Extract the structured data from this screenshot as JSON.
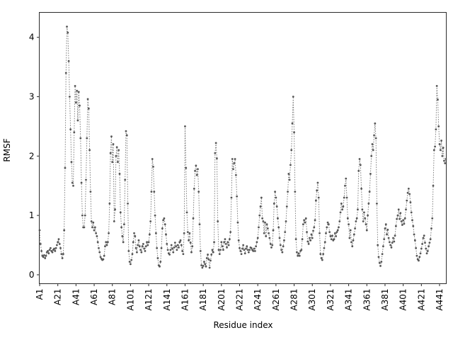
{
  "figure": {
    "xlabel": "Residue index",
    "ylabel": "RMSF"
  },
  "chart_data": {
    "type": "line",
    "title": "",
    "xlabel": "Residue index",
    "ylabel": "RMSF",
    "line_style": "dotted",
    "marker": "point",
    "marker_color": "#555555",
    "line_color": "#808080",
    "grid": false,
    "legend": null,
    "x_tick_labels": [
      "A1",
      "A21",
      "A41",
      "A61",
      "A81",
      "A101",
      "A121",
      "A141",
      "A161",
      "A181",
      "A201",
      "A221",
      "A241",
      "A261",
      "A281",
      "A301",
      "A321",
      "A341",
      "A361",
      "A381",
      "A401",
      "A421",
      "A441"
    ],
    "x_tick_positions": [
      1,
      21,
      41,
      61,
      81,
      101,
      121,
      141,
      161,
      181,
      201,
      221,
      241,
      261,
      281,
      301,
      321,
      341,
      361,
      381,
      401,
      421,
      441
    ],
    "y_ticks": [
      0,
      1,
      2,
      3,
      4
    ],
    "ylim": [
      -0.15,
      4.42
    ],
    "x_start": 1,
    "x_step": 1,
    "values": [
      0.75,
      0.52,
      0.4,
      0.32,
      0.3,
      0.33,
      0.28,
      0.32,
      0.38,
      0.4,
      0.36,
      0.42,
      0.45,
      0.4,
      0.38,
      0.42,
      0.44,
      0.4,
      0.45,
      0.5,
      0.55,
      0.6,
      0.52,
      0.45,
      0.35,
      0.28,
      0.35,
      0.75,
      1.8,
      3.4,
      4.18,
      4.08,
      3.6,
      3.0,
      2.45,
      1.9,
      1.55,
      1.5,
      2.4,
      3.18,
      2.9,
      3.1,
      2.6,
      3.08,
      2.85,
      2.3,
      1.55,
      1.0,
      0.8,
      0.8,
      1.0,
      1.6,
      2.3,
      2.96,
      2.8,
      2.1,
      1.4,
      0.9,
      0.8,
      0.88,
      0.75,
      0.8,
      0.7,
      0.65,
      0.55,
      0.45,
      0.38,
      0.3,
      0.27,
      0.25,
      0.26,
      0.32,
      0.48,
      0.55,
      0.5,
      0.55,
      0.7,
      1.2,
      2.05,
      2.33,
      1.9,
      2.2,
      0.9,
      1.1,
      2.0,
      2.15,
      1.9,
      2.1,
      1.7,
      1.05,
      0.8,
      0.65,
      0.55,
      0.85,
      1.6,
      2.42,
      2.35,
      1.2,
      0.4,
      0.22,
      0.18,
      0.25,
      0.35,
      0.55,
      0.7,
      0.65,
      0.45,
      0.38,
      0.5,
      0.58,
      0.48,
      0.42,
      0.38,
      0.48,
      0.52,
      0.44,
      0.4,
      0.48,
      0.55,
      0.5,
      0.55,
      0.68,
      0.9,
      1.4,
      1.95,
      1.82,
      1.4,
      1.0,
      0.7,
      0.45,
      0.28,
      0.16,
      0.14,
      0.22,
      0.45,
      0.78,
      0.92,
      0.95,
      0.85,
      0.68,
      0.52,
      0.42,
      0.36,
      0.34,
      0.42,
      0.5,
      0.44,
      0.38,
      0.46,
      0.54,
      0.48,
      0.42,
      0.5,
      0.46,
      0.55,
      0.58,
      0.5,
      0.4,
      0.35,
      0.7,
      2.5,
      1.8,
      1.05,
      0.72,
      0.58,
      0.7,
      0.54,
      0.38,
      0.48,
      0.95,
      1.45,
      1.75,
      1.84,
      1.68,
      1.78,
      1.4,
      0.85,
      0.4,
      0.16,
      0.12,
      0.15,
      0.22,
      0.18,
      0.14,
      0.28,
      0.34,
      0.26,
      0.12,
      0.24,
      0.34,
      0.42,
      0.38,
      0.55,
      2.05,
      2.22,
      1.96,
      0.9,
      0.42,
      0.35,
      0.42,
      0.55,
      0.48,
      0.42,
      0.55,
      0.6,
      0.52,
      0.46,
      0.55,
      0.5,
      0.6,
      0.72,
      1.3,
      1.95,
      1.78,
      1.88,
      1.95,
      1.68,
      1.32,
      0.88,
      0.58,
      0.45,
      0.4,
      0.35,
      0.44,
      0.5,
      0.42,
      0.36,
      0.44,
      0.48,
      0.42,
      0.38,
      0.42,
      0.46,
      0.45,
      0.42,
      0.4,
      0.44,
      0.4,
      0.48,
      0.55,
      0.62,
      0.8,
      1.0,
      1.15,
      1.3,
      0.95,
      0.9,
      0.7,
      0.88,
      0.65,
      0.85,
      0.78,
      0.7,
      0.62,
      0.52,
      0.46,
      0.5,
      0.75,
      1.2,
      1.4,
      1.3,
      1.15,
      0.95,
      0.8,
      0.62,
      0.5,
      0.42,
      0.38,
      0.48,
      0.58,
      0.72,
      0.9,
      1.15,
      1.4,
      1.7,
      1.6,
      1.85,
      2.1,
      2.55,
      3.0,
      2.4,
      1.4,
      0.6,
      0.38,
      0.32,
      0.36,
      0.32,
      0.4,
      0.42,
      0.6,
      0.85,
      0.92,
      0.88,
      0.95,
      0.72,
      0.56,
      0.52,
      0.62,
      0.58,
      0.68,
      0.62,
      0.74,
      0.8,
      0.92,
      1.25,
      1.42,
      1.55,
      1.3,
      0.7,
      0.35,
      0.28,
      0.25,
      0.35,
      0.45,
      0.55,
      0.7,
      0.8,
      0.88,
      0.85,
      0.72,
      0.65,
      0.6,
      0.66,
      0.58,
      0.6,
      0.7,
      0.65,
      0.72,
      0.75,
      0.8,
      0.9,
      1.05,
      1.2,
      1.1,
      1.15,
      1.3,
      1.5,
      1.62,
      1.3,
      0.95,
      0.85,
      0.62,
      0.75,
      0.55,
      0.48,
      0.58,
      0.68,
      0.78,
      0.9,
      0.95,
      1.1,
      1.75,
      1.95,
      1.85,
      1.45,
      1.1,
      0.9,
      1.05,
      0.95,
      0.85,
      0.75,
      1.0,
      1.2,
      1.4,
      1.7,
      2.0,
      2.2,
      2.1,
      2.35,
      2.55,
      2.3,
      1.2,
      0.5,
      0.3,
      0.2,
      0.15,
      0.22,
      0.35,
      0.48,
      0.6,
      0.78,
      0.85,
      0.68,
      0.76,
      0.62,
      0.55,
      0.5,
      0.46,
      0.54,
      0.62,
      0.56,
      0.66,
      0.82,
      0.94,
      1.0,
      1.1,
      0.94,
      1.04,
      0.9,
      0.84,
      0.92,
      0.86,
      0.95,
      1.1,
      1.25,
      1.38,
      1.45,
      1.36,
      1.22,
      1.05,
      0.92,
      0.82,
      0.68,
      0.58,
      0.45,
      0.32,
      0.26,
      0.24,
      0.3,
      0.36,
      0.44,
      0.52,
      0.62,
      0.66,
      0.54,
      0.44,
      0.36,
      0.4,
      0.48,
      0.54,
      0.6,
      0.78,
      0.95,
      1.5,
      2.1,
      2.16,
      2.45,
      3.18,
      2.95,
      2.5,
      2.2,
      2.1,
      2.26,
      2.0,
      2.14,
      1.92,
      1.88,
      1.95
    ]
  }
}
